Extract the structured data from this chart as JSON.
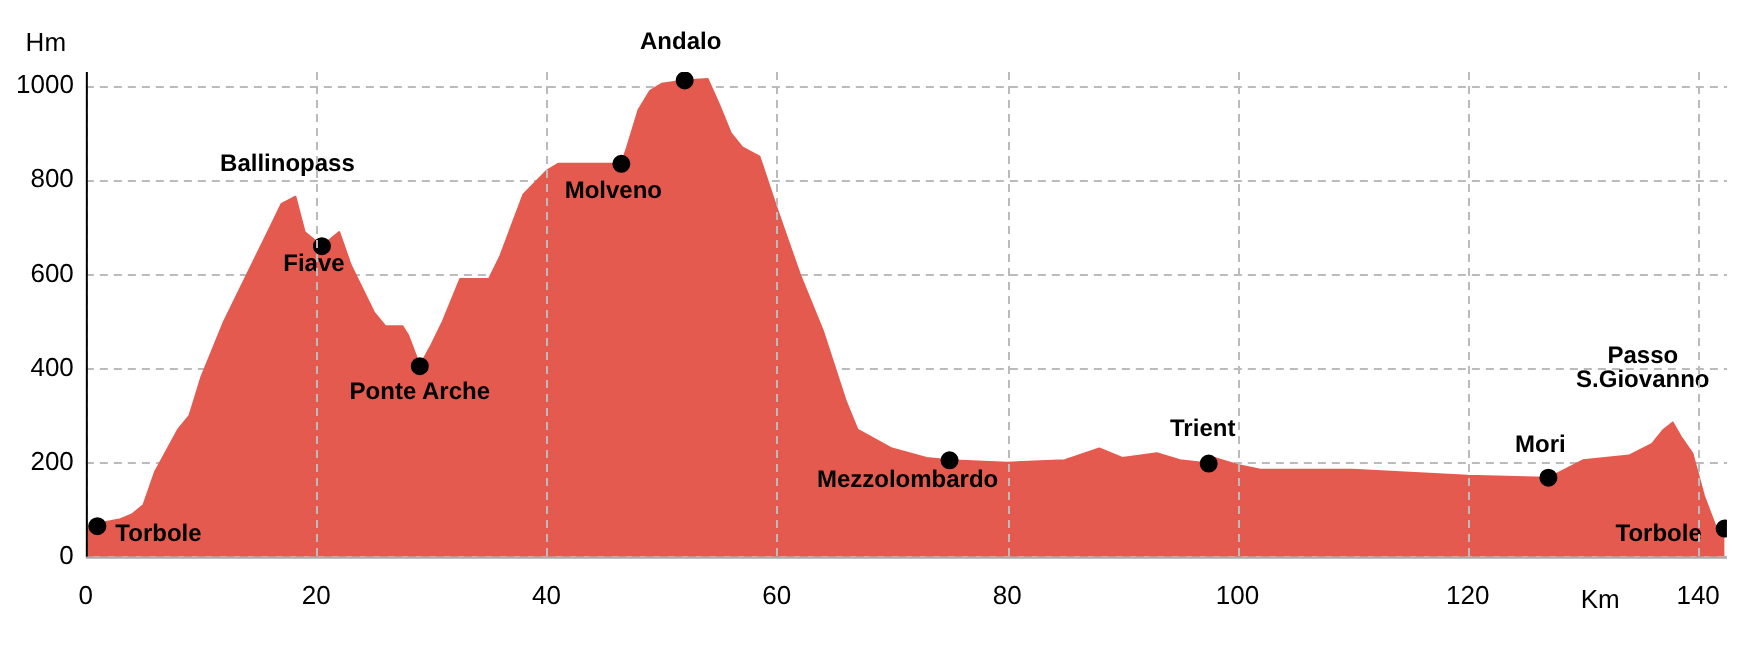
{
  "chart_data": {
    "type": "area",
    "xlabel": "Km",
    "ylabel": "Hm",
    "xlim": [
      0,
      142.5
    ],
    "xticks": [
      0,
      20,
      40,
      60,
      80,
      100,
      120,
      140
    ],
    "ylim": [
      0,
      1030
    ],
    "yticks": [
      0,
      200,
      400,
      600,
      800,
      1000
    ],
    "grid": true,
    "legend": false,
    "series": [
      {
        "type": "area",
        "color": "#e55a4e",
        "x": [
          0,
          1,
          3,
          4,
          5,
          6,
          8,
          9,
          10,
          12,
          14,
          16,
          17,
          18.2,
          19,
          20.5,
          22,
          23,
          25,
          26,
          27.5,
          28,
          29,
          30,
          31,
          32.5,
          35,
          36,
          38,
          40,
          41,
          46.5,
          47,
          48,
          49,
          50,
          52,
          54,
          55,
          56,
          57,
          58.5,
          60,
          62,
          64,
          66,
          67,
          70,
          73,
          75,
          80,
          85,
          88,
          90,
          93,
          95,
          97.5,
          98,
          100,
          102,
          110,
          120,
          127,
          128,
          130,
          134,
          136,
          137,
          137.8,
          138.5,
          139.5,
          140.5,
          141.5,
          142.3
        ],
        "values": [
          65,
          70,
          80,
          90,
          110,
          180,
          270,
          300,
          380,
          500,
          600,
          700,
          750,
          765,
          690,
          660,
          690,
          620,
          520,
          490,
          490,
          470,
          405,
          450,
          500,
          590,
          590,
          640,
          770,
          820,
          835,
          835,
          870,
          950,
          990,
          1005,
          1012,
          1015,
          960,
          900,
          870,
          850,
          740,
          600,
          480,
          330,
          270,
          230,
          210,
          205,
          200,
          205,
          230,
          210,
          220,
          205,
          198,
          210,
          195,
          185,
          185,
          172,
          168,
          180,
          205,
          215,
          240,
          270,
          285,
          255,
          220,
          130,
          65,
          60
        ]
      },
      {
        "type": "scatter",
        "color": "#000000",
        "x": [
          1,
          20.5,
          29,
          46.5,
          52,
          75,
          97.5,
          127,
          142.3
        ],
        "values": [
          65,
          660,
          405,
          835,
          1012,
          205,
          198,
          168,
          60
        ]
      }
    ],
    "annotations": [
      {
        "text": "Torbole",
        "x": 1,
        "y": 65
      },
      {
        "text": "Ballinopass",
        "x": 18.2,
        "y": 765
      },
      {
        "text": "Fiave",
        "x": 20.5,
        "y": 660
      },
      {
        "text": "Ponte Arche",
        "x": 29,
        "y": 405
      },
      {
        "text": "Molveno",
        "x": 46.5,
        "y": 835
      },
      {
        "text": "Andalo",
        "x": 52,
        "y": 1012
      },
      {
        "text": "Mezzolombardo",
        "x": 75,
        "y": 205
      },
      {
        "text": "Trient",
        "x": 97.5,
        "y": 198
      },
      {
        "text": "Mori",
        "x": 127,
        "y": 168
      },
      {
        "text": "Passo\nS.Giovanno",
        "x": 137.8,
        "y": 285
      },
      {
        "text": "Torbole",
        "x": 142.3,
        "y": 60
      }
    ]
  }
}
